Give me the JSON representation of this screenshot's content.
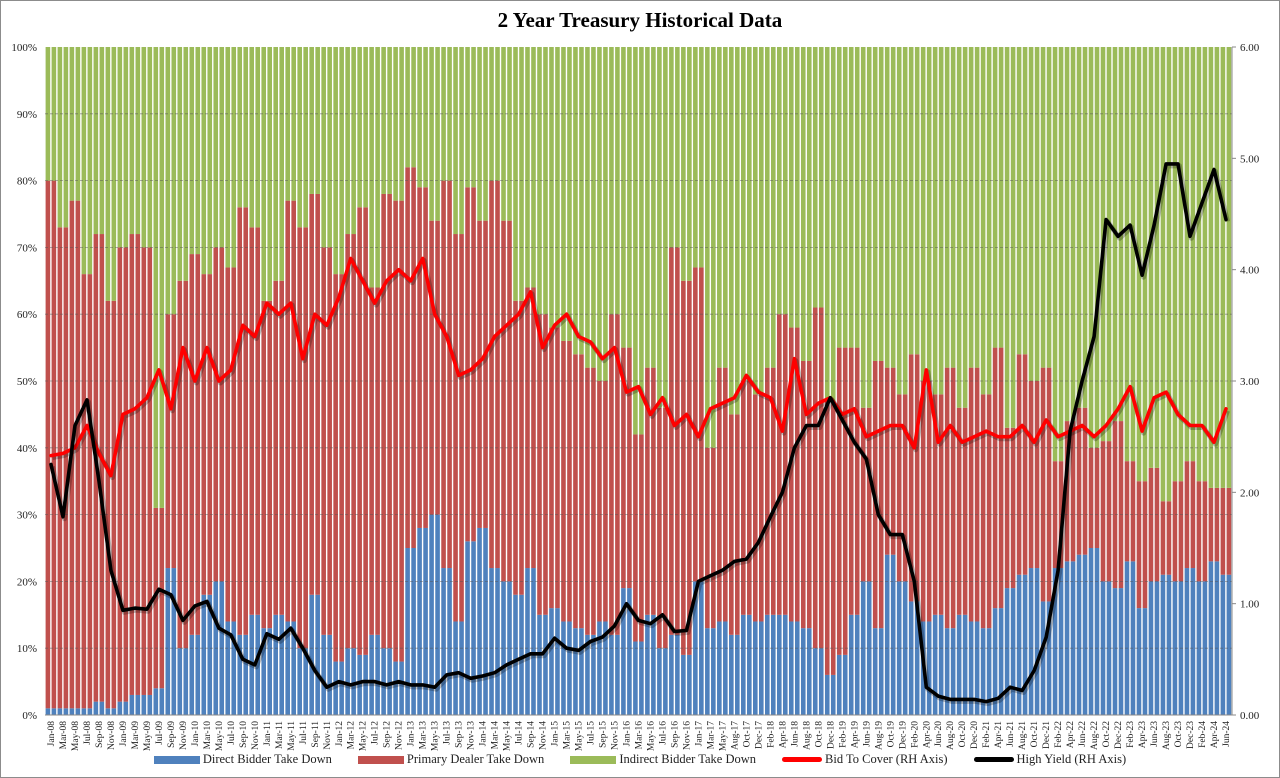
{
  "chart_data": {
    "type": "bar",
    "title": "2 Year Treasury  Historical Data",
    "xlabel": "",
    "ylabel": "",
    "ylim": [
      0,
      100
    ],
    "y2lim": [
      0,
      6
    ],
    "y_ticks": [
      "0%",
      "10%",
      "20%",
      "30%",
      "40%",
      "50%",
      "60%",
      "70%",
      "80%",
      "90%",
      "100%"
    ],
    "y2_ticks": [
      "0.00",
      "1.00",
      "2.00",
      "3.00",
      "4.00",
      "5.00",
      "6.00"
    ],
    "grid": true,
    "legend_position": "bottom",
    "categories": [
      "Jan-08",
      "Mar-08",
      "May-08",
      "Jul-08",
      "Sep-08",
      "Nov-08",
      "Jan-09",
      "Mar-09",
      "May-09",
      "Jul-09",
      "Sep-09",
      "Nov-09",
      "Jan-10",
      "Mar-10",
      "May-10",
      "Jul-10",
      "Sep-10",
      "Nov-10",
      "Jan-11",
      "Mar-11",
      "May-11",
      "Jul-11",
      "Sep-11",
      "Nov-11",
      "Jan-12",
      "Mar-12",
      "May-12",
      "Jul-12",
      "Sep-12",
      "Nov-12",
      "Jan-13",
      "Mar-13",
      "May-13",
      "Jul-13",
      "Sep-13",
      "Nov-13",
      "Jan-14",
      "Mar-14",
      "May-14",
      "Jul-14",
      "Sep-14",
      "Nov-14",
      "Jan-15",
      "Mar-15",
      "May-15",
      "Jul-15",
      "Sep-15",
      "Nov-15",
      "Jan-16",
      "Mar-16",
      "May-16",
      "Jul-16",
      "Sep-16",
      "Nov-16",
      "Jan-17",
      "Mar-17",
      "May-17",
      "Aug-17",
      "Oct-17",
      "Dec-17",
      "Feb-18",
      "Apr-18",
      "Jun-18",
      "Aug-18",
      "Oct-18",
      "Dec-18",
      "Feb-19",
      "Apr-19",
      "Jun-19",
      "Aug-19",
      "Oct-19",
      "Dec-19",
      "Feb-20",
      "Apr-20",
      "Jun-20",
      "Aug-20",
      "Oct-20",
      "Dec-20",
      "Feb-21",
      "Apr-21",
      "Jun-21",
      "Aug-21",
      "Oct-21",
      "Dec-21",
      "Feb-22",
      "Apr-22",
      "Jun-22",
      "Aug-22",
      "Oct-22",
      "Dec-22",
      "Feb-23",
      "Apr-23",
      "Jun-23",
      "Aug-23",
      "Oct-23",
      "Dec-23",
      "Feb-24",
      "Apr-24",
      "Jun-24"
    ],
    "series": [
      {
        "name": "Direct Bidder Take Down",
        "type": "stacked-bar",
        "axis": "left",
        "color": "#4f81bd",
        "values": [
          1,
          1,
          1,
          1,
          2,
          1,
          2,
          3,
          3,
          4,
          22,
          10,
          12,
          18,
          20,
          14,
          12,
          15,
          13,
          15,
          14,
          10,
          18,
          12,
          8,
          10,
          9,
          12,
          10,
          8,
          25,
          28,
          30,
          22,
          14,
          26,
          28,
          22,
          20,
          18,
          22,
          15,
          16,
          14,
          13,
          12,
          14,
          12,
          19,
          11,
          15,
          10,
          12,
          9,
          20,
          13,
          14,
          12,
          15,
          14,
          15,
          15,
          14,
          13,
          10,
          6,
          9,
          15,
          20,
          13,
          24,
          20,
          17,
          14,
          15,
          13,
          15,
          14,
          13,
          16,
          19,
          21,
          22,
          17,
          22,
          23,
          24,
          25,
          20,
          19,
          23,
          16,
          20,
          21,
          20,
          22,
          20,
          23,
          21
        ]
      },
      {
        "name": "Primary Dealer Take Down",
        "type": "stacked-bar",
        "axis": "left",
        "color": "#c0504d",
        "values": [
          79,
          72,
          76,
          65,
          70,
          61,
          68,
          69,
          67,
          27,
          38,
          55,
          57,
          48,
          50,
          53,
          64,
          58,
          49,
          50,
          63,
          63,
          60,
          58,
          58,
          62,
          67,
          52,
          68,
          69,
          57,
          51,
          44,
          58,
          58,
          53,
          46,
          58,
          54,
          44,
          42,
          45,
          42,
          42,
          41,
          40,
          36,
          48,
          36,
          31,
          37,
          36,
          58,
          56,
          47,
          27,
          38,
          33,
          35,
          34,
          37,
          45,
          44,
          40,
          51,
          41,
          46,
          40,
          26,
          40,
          28,
          28,
          37,
          36,
          33,
          39,
          31,
          38,
          35,
          39,
          24,
          33,
          28,
          35,
          16,
          21,
          22,
          15,
          21,
          25,
          15,
          19,
          17,
          11,
          15,
          16,
          15,
          11,
          13
        ]
      },
      {
        "name": "Indirect Bidder Take Down",
        "type": "stacked-bar",
        "axis": "left",
        "color": "#9bbb59",
        "values": [
          20,
          27,
          23,
          34,
          28,
          38,
          30,
          28,
          30,
          69,
          40,
          35,
          31,
          34,
          30,
          33,
          24,
          27,
          38,
          35,
          23,
          27,
          22,
          30,
          34,
          28,
          24,
          36,
          22,
          23,
          18,
          21,
          26,
          20,
          28,
          21,
          26,
          20,
          26,
          38,
          36,
          40,
          42,
          44,
          46,
          48,
          50,
          40,
          45,
          58,
          48,
          54,
          30,
          35,
          33,
          60,
          48,
          55,
          50,
          52,
          48,
          40,
          42,
          47,
          39,
          53,
          45,
          45,
          54,
          47,
          48,
          52,
          46,
          50,
          52,
          48,
          54,
          48,
          52,
          45,
          57,
          46,
          50,
          48,
          62,
          56,
          54,
          60,
          59,
          56,
          62,
          65,
          63,
          68,
          65,
          62,
          65,
          66,
          66
        ]
      },
      {
        "name": "Bid To Cover (RH Axis)",
        "type": "line",
        "axis": "right",
        "color": "#ff0000",
        "values": [
          2.33,
          2.35,
          2.4,
          2.6,
          2.35,
          2.15,
          2.7,
          2.75,
          2.85,
          3.1,
          2.75,
          3.3,
          3.0,
          3.3,
          3.0,
          3.1,
          3.5,
          3.4,
          3.7,
          3.6,
          3.7,
          3.2,
          3.6,
          3.5,
          3.75,
          4.1,
          3.9,
          3.7,
          3.9,
          4.0,
          3.9,
          4.1,
          3.6,
          3.4,
          3.05,
          3.1,
          3.2,
          3.4,
          3.5,
          3.6,
          3.8,
          3.3,
          3.5,
          3.6,
          3.4,
          3.35,
          3.2,
          3.3,
          2.9,
          2.95,
          2.7,
          2.85,
          2.6,
          2.7,
          2.5,
          2.75,
          2.8,
          2.85,
          3.05,
          2.9,
          2.85,
          2.55,
          3.2,
          2.7,
          2.8,
          2.85,
          2.7,
          2.75,
          2.5,
          2.55,
          2.6,
          2.6,
          2.4,
          3.1,
          2.45,
          2.6,
          2.45,
          2.5,
          2.55,
          2.5,
          2.5,
          2.6,
          2.45,
          2.65,
          2.5,
          2.55,
          2.6,
          2.5,
          2.6,
          2.75,
          2.95,
          2.55,
          2.85,
          2.9,
          2.7,
          2.6,
          2.6,
          2.45,
          2.75
        ]
      },
      {
        "name": "High Yield (RH Axis)",
        "type": "line",
        "axis": "right",
        "color": "#000000",
        "values": [
          2.25,
          1.78,
          2.6,
          2.83,
          2.1,
          1.3,
          0.94,
          0.96,
          0.95,
          1.13,
          1.08,
          0.85,
          0.98,
          1.02,
          0.78,
          0.72,
          0.5,
          0.45,
          0.73,
          0.68,
          0.78,
          0.6,
          0.4,
          0.25,
          0.3,
          0.27,
          0.3,
          0.3,
          0.27,
          0.3,
          0.27,
          0.27,
          0.25,
          0.36,
          0.38,
          0.33,
          0.35,
          0.38,
          0.45,
          0.5,
          0.55,
          0.55,
          0.69,
          0.6,
          0.58,
          0.66,
          0.7,
          0.8,
          1.0,
          0.85,
          0.82,
          0.9,
          0.75,
          0.76,
          1.2,
          1.25,
          1.3,
          1.38,
          1.4,
          1.55,
          1.78,
          2.0,
          2.4,
          2.6,
          2.6,
          2.85,
          2.65,
          2.45,
          2.3,
          1.8,
          1.62,
          1.62,
          1.2,
          0.25,
          0.17,
          0.14,
          0.14,
          0.14,
          0.12,
          0.15,
          0.25,
          0.22,
          0.4,
          0.7,
          1.3,
          2.55,
          3.0,
          3.4,
          4.45,
          4.3,
          4.4,
          3.95,
          4.4,
          4.95,
          4.95,
          4.3,
          4.6,
          4.9,
          4.45
        ]
      }
    ]
  }
}
